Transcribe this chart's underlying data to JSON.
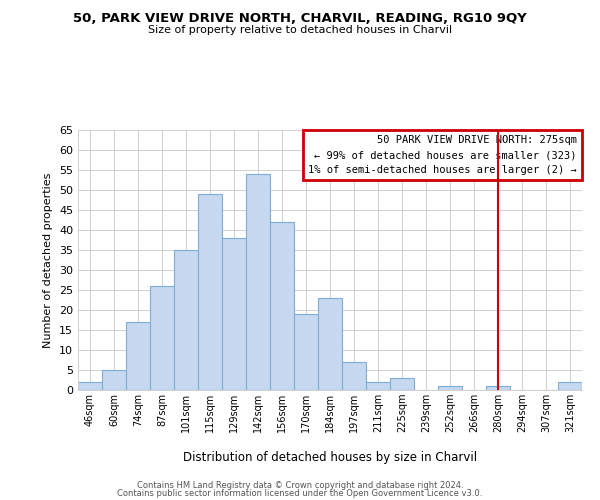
{
  "title": "50, PARK VIEW DRIVE NORTH, CHARVIL, READING, RG10 9QY",
  "subtitle": "Size of property relative to detached houses in Charvil",
  "xlabel": "Distribution of detached houses by size in Charvil",
  "ylabel": "Number of detached properties",
  "bin_labels": [
    "46sqm",
    "60sqm",
    "74sqm",
    "87sqm",
    "101sqm",
    "115sqm",
    "129sqm",
    "142sqm",
    "156sqm",
    "170sqm",
    "184sqm",
    "197sqm",
    "211sqm",
    "225sqm",
    "239sqm",
    "252sqm",
    "266sqm",
    "280sqm",
    "294sqm",
    "307sqm",
    "321sqm"
  ],
  "bar_values": [
    2,
    5,
    17,
    26,
    35,
    49,
    38,
    54,
    42,
    19,
    23,
    7,
    2,
    3,
    0,
    1,
    0,
    1,
    0,
    0,
    2
  ],
  "bar_color": "#c6d9f0",
  "bar_edge_color": "#7bafd4",
  "vline_x": 17,
  "vline_color": "#cc0000",
  "ylim": [
    0,
    65
  ],
  "yticks": [
    0,
    5,
    10,
    15,
    20,
    25,
    30,
    35,
    40,
    45,
    50,
    55,
    60,
    65
  ],
  "legend_title": "50 PARK VIEW DRIVE NORTH: 275sqm",
  "legend_line1": "← 99% of detached houses are smaller (323)",
  "legend_line2": "1% of semi-detached houses are larger (2) →",
  "legend_border_color": "#cc0000",
  "footnote1": "Contains HM Land Registry data © Crown copyright and database right 2024.",
  "footnote2": "Contains public sector information licensed under the Open Government Licence v3.0."
}
